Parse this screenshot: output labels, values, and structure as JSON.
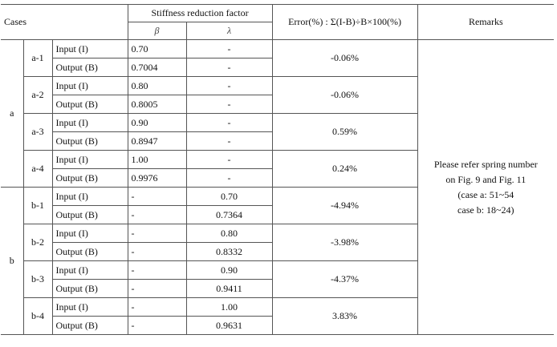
{
  "header": {
    "cases": "Cases",
    "stiffness": "Stiffness reduction factor",
    "beta": "β",
    "lambda": "λ",
    "error": "Error(%) : Σ(I-B)÷B×100(%)",
    "remarks": "Remarks"
  },
  "groups": [
    {
      "label": "a",
      "cases": [
        {
          "id": "a-1",
          "input": {
            "label": "Input (I)",
            "beta": "0.70",
            "lambda": "-"
          },
          "output": {
            "label": "Output (B)",
            "beta": "0.7004",
            "lambda": "-"
          },
          "error": "-0.06%"
        },
        {
          "id": "a-2",
          "input": {
            "label": "Input (I)",
            "beta": "0.80",
            "lambda": "-"
          },
          "output": {
            "label": "Output (B)",
            "beta": "0.8005",
            "lambda": "-"
          },
          "error": "-0.06%"
        },
        {
          "id": "a-3",
          "input": {
            "label": "Input (I)",
            "beta": "0.90",
            "lambda": "-"
          },
          "output": {
            "label": "Output (B)",
            "beta": "0.8947",
            "lambda": "-"
          },
          "error": "0.59%"
        },
        {
          "id": "a-4",
          "input": {
            "label": "Input (I)",
            "beta": "1.00",
            "lambda": "-"
          },
          "output": {
            "label": "Output (B)",
            "beta": "0.9976",
            "lambda": "-"
          },
          "error": "0.24%"
        }
      ]
    },
    {
      "label": "b",
      "cases": [
        {
          "id": "b-1",
          "input": {
            "label": "Input (I)",
            "beta": "-",
            "lambda": "0.70"
          },
          "output": {
            "label": "Output (B)",
            "beta": "-",
            "lambda": "0.7364"
          },
          "error": "-4.94%"
        },
        {
          "id": "b-2",
          "input": {
            "label": "Input (I)",
            "beta": "-",
            "lambda": "0.80"
          },
          "output": {
            "label": "Output (B)",
            "beta": "-",
            "lambda": "0.8332"
          },
          "error": "-3.98%"
        },
        {
          "id": "b-3",
          "input": {
            "label": "Input (I)",
            "beta": "-",
            "lambda": "0.90"
          },
          "output": {
            "label": "Output (B)",
            "beta": "-",
            "lambda": "0.9411"
          },
          "error": "-4.37%"
        },
        {
          "id": "b-4",
          "input": {
            "label": "Input (I)",
            "beta": "-",
            "lambda": "1.00"
          },
          "output": {
            "label": "Output (B)",
            "beta": "-",
            "lambda": "0.9631"
          },
          "error": "3.83%"
        }
      ]
    }
  ],
  "remarks_lines": [
    "Please refer spring number",
    "on Fig. 9 and Fig. 11",
    "(case a: 51~54",
    "case b: 18~24)"
  ]
}
